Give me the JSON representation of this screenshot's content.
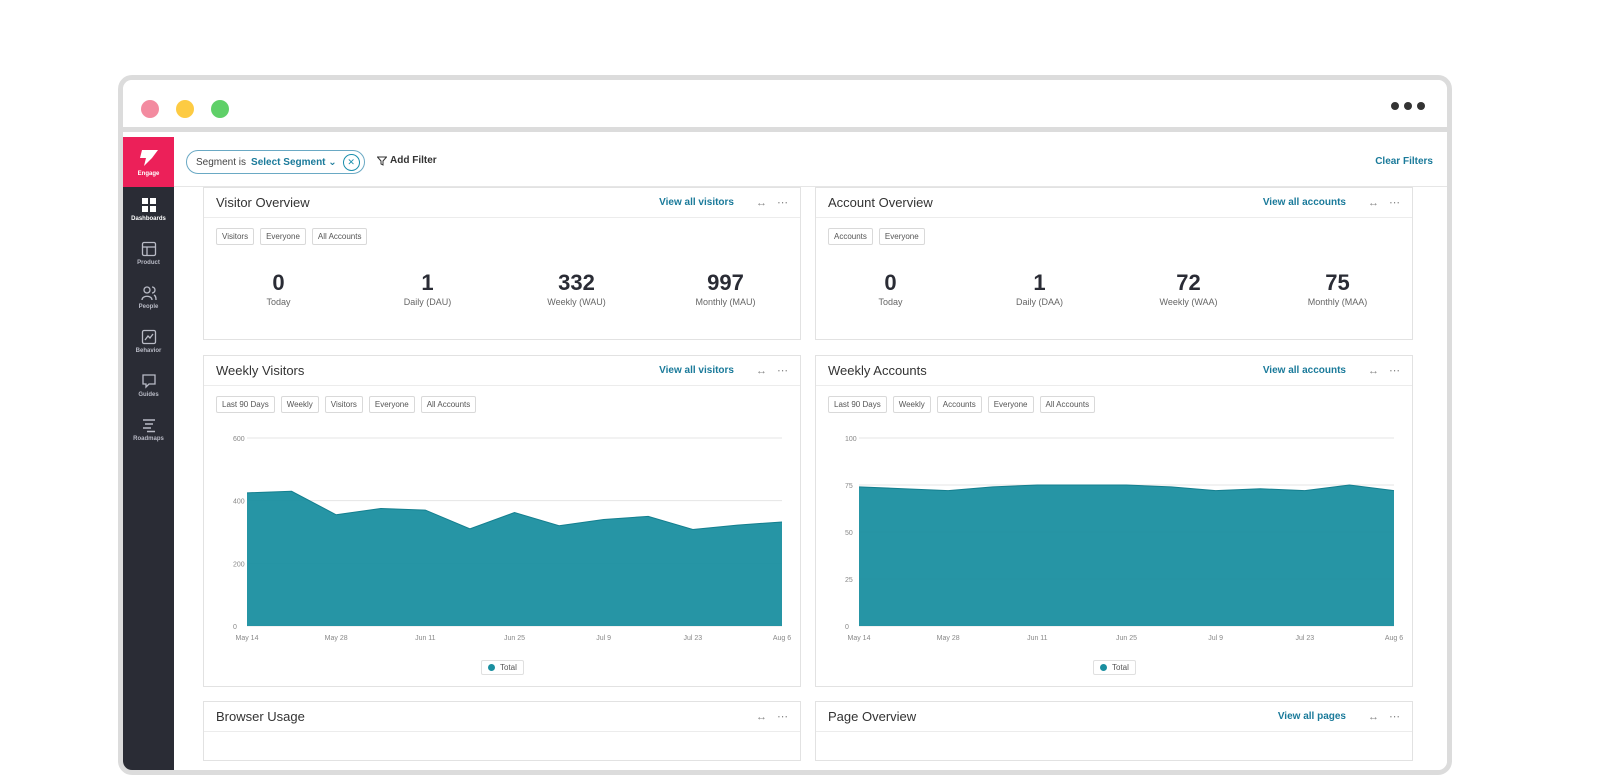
{
  "sidebar": {
    "brand": "Engage",
    "items": [
      {
        "label": "Dashboards",
        "icon": "dashboards-icon"
      },
      {
        "label": "Product",
        "icon": "product-icon"
      },
      {
        "label": "People",
        "icon": "people-icon"
      },
      {
        "label": "Behavior",
        "icon": "behavior-icon"
      },
      {
        "label": "Guides",
        "icon": "guides-icon"
      },
      {
        "label": "Roadmaps",
        "icon": "roadmaps-icon"
      }
    ]
  },
  "filterbar": {
    "segment_static": "Segment is",
    "segment_select": "Select Segment",
    "add_filter": "Add Filter",
    "clear_filters": "Clear Filters"
  },
  "visitor_overview": {
    "title": "Visitor Overview",
    "link": "View all visitors",
    "tags": [
      "Visitors",
      "Everyone",
      "All Accounts"
    ],
    "metrics": [
      {
        "value": "0",
        "label": "Today"
      },
      {
        "value": "1",
        "label": "Daily (DAU)"
      },
      {
        "value": "332",
        "label": "Weekly (WAU)"
      },
      {
        "value": "997",
        "label": "Monthly (MAU)"
      }
    ]
  },
  "account_overview": {
    "title": "Account Overview",
    "link": "View all accounts",
    "tags": [
      "Accounts",
      "Everyone"
    ],
    "metrics": [
      {
        "value": "0",
        "label": "Today"
      },
      {
        "value": "1",
        "label": "Daily (DAA)"
      },
      {
        "value": "72",
        "label": "Weekly (WAA)"
      },
      {
        "value": "75",
        "label": "Monthly (MAA)"
      }
    ]
  },
  "weekly_visitors": {
    "title": "Weekly Visitors",
    "link": "View all visitors",
    "tags": [
      "Last 90 Days",
      "Weekly",
      "Visitors",
      "Everyone",
      "All Accounts"
    ],
    "legend": "Total"
  },
  "weekly_accounts": {
    "title": "Weekly Accounts",
    "link": "View all accounts",
    "tags": [
      "Last 90 Days",
      "Weekly",
      "Accounts",
      "Everyone",
      "All Accounts"
    ],
    "legend": "Total"
  },
  "browser_usage": {
    "title": "Browser Usage"
  },
  "page_overview": {
    "title": "Page Overview",
    "link": "View all pages"
  },
  "colors": {
    "accent": "#1a8fa0",
    "brand": "#ec2059",
    "sidebar": "#2a2c35"
  },
  "chart_data": [
    {
      "type": "area",
      "title": "Weekly Visitors",
      "x": [
        "May 14",
        "May 21",
        "May 28",
        "Jun 4",
        "Jun 11",
        "Jun 18",
        "Jun 25",
        "Jul 2",
        "Jul 9",
        "Jul 16",
        "Jul 23",
        "Jul 30",
        "Aug 6"
      ],
      "xticks": [
        "May 14",
        "May 28",
        "Jun 11",
        "Jun 25",
        "Jul 9",
        "Jul 23",
        "Aug 6"
      ],
      "series": [
        {
          "name": "Total",
          "values": [
            425,
            430,
            355,
            375,
            370,
            310,
            362,
            320,
            340,
            350,
            308,
            322,
            332
          ]
        }
      ],
      "yticks": [
        0,
        200,
        400,
        600
      ],
      "ylim": [
        0,
        600
      ]
    },
    {
      "type": "area",
      "title": "Weekly Accounts",
      "x": [
        "May 14",
        "May 21",
        "May 28",
        "Jun 4",
        "Jun 11",
        "Jun 18",
        "Jun 25",
        "Jul 2",
        "Jul 9",
        "Jul 16",
        "Jul 23",
        "Jul 30",
        "Aug 6"
      ],
      "xticks": [
        "May 14",
        "May 28",
        "Jun 11",
        "Jun 25",
        "Jul 9",
        "Jul 23",
        "Aug 6"
      ],
      "series": [
        {
          "name": "Total",
          "values": [
            74,
            73,
            72,
            74,
            75,
            75,
            75,
            74,
            72,
            73,
            72,
            75,
            72
          ]
        }
      ],
      "yticks": [
        0,
        25,
        50,
        75,
        100
      ],
      "ylim": [
        0,
        100
      ]
    }
  ]
}
